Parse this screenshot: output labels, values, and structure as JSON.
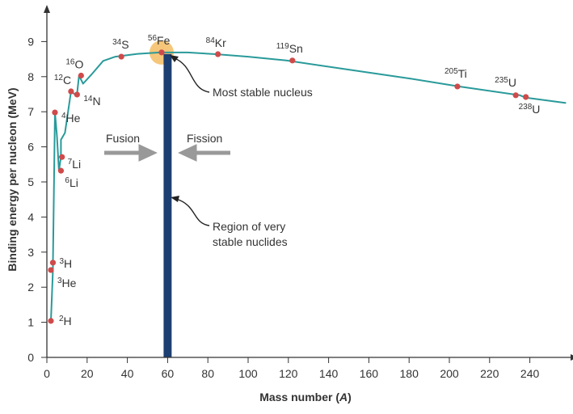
{
  "chart_data": {
    "type": "line",
    "xlabel": "Mass number (",
    "xlabel_italic": "A",
    "xlabel_end": ")",
    "ylabel": "Binding energy per nucleon (MeV)",
    "xlim": [
      0,
      260
    ],
    "ylim": [
      0,
      9.6
    ],
    "xticks": [
      0,
      20,
      40,
      60,
      80,
      100,
      120,
      140,
      160,
      180,
      200,
      220,
      240
    ],
    "yticks": [
      0,
      1,
      2,
      3,
      4,
      5,
      6,
      7,
      8,
      9
    ],
    "grid": false,
    "colors": {
      "curve": "#2a9a9a",
      "point": "#d04a4a",
      "band": "#1d3f72",
      "highlight": "#f6c77a",
      "arrow": "#999999"
    },
    "curve": [
      [
        2,
        1.04
      ],
      [
        3,
        2.5
      ],
      [
        3,
        2.7
      ],
      [
        4,
        6.98
      ],
      [
        5,
        6.3
      ],
      [
        6,
        5.32
      ],
      [
        7,
        5.71
      ],
      [
        7,
        6.2
      ],
      [
        9,
        6.4
      ],
      [
        12,
        7.58
      ],
      [
        14,
        7.49
      ],
      [
        15,
        7.5
      ],
      [
        16,
        8.03
      ],
      [
        18,
        7.8
      ],
      [
        22,
        8.05
      ],
      [
        28,
        8.45
      ],
      [
        34,
        8.57
      ],
      [
        45,
        8.65
      ],
      [
        56,
        8.69
      ],
      [
        70,
        8.69
      ],
      [
        84,
        8.64
      ],
      [
        100,
        8.57
      ],
      [
        119,
        8.46
      ],
      [
        150,
        8.2
      ],
      [
        180,
        7.95
      ],
      [
        205,
        7.72
      ],
      [
        235,
        7.47
      ],
      [
        238,
        7.4
      ],
      [
        258,
        7.25
      ]
    ],
    "points": [
      {
        "mass": "2",
        "symbol": "H",
        "a": 2,
        "be": 1.04
      },
      {
        "mass": "3",
        "symbol": "He",
        "a": 2,
        "be": 2.49
      },
      {
        "mass": "3",
        "symbol": "H",
        "a": 3,
        "be": 2.7
      },
      {
        "mass": "4",
        "symbol": "He",
        "a": 4,
        "be": 6.98
      },
      {
        "mass": "6",
        "symbol": "Li",
        "a": 7,
        "be": 5.32
      },
      {
        "mass": "7",
        "symbol": "Li",
        "a": 7.5,
        "be": 5.71
      },
      {
        "mass": "12",
        "symbol": "C",
        "a": 12,
        "be": 7.58
      },
      {
        "mass": "14",
        "symbol": "N",
        "a": 15,
        "be": 7.49
      },
      {
        "mass": "16",
        "symbol": "O",
        "a": 17,
        "be": 8.03
      },
      {
        "mass": "34",
        "symbol": "S",
        "a": 37,
        "be": 8.57
      },
      {
        "mass": "56",
        "symbol": "Fe",
        "a": 57,
        "be": 8.69
      },
      {
        "mass": "84",
        "symbol": "Kr",
        "a": 85,
        "be": 8.64
      },
      {
        "mass": "119",
        "symbol": "Sn",
        "a": 122,
        "be": 8.46
      },
      {
        "mass": "205",
        "symbol": "Ti",
        "a": 204,
        "be": 7.72
      },
      {
        "mass": "235",
        "symbol": "U",
        "a": 233,
        "be": 7.47
      },
      {
        "mass": "238",
        "symbol": "U",
        "a": 238,
        "be": 7.42
      }
    ],
    "stable_region": [
      58,
      62
    ],
    "annotations": {
      "most_stable": "Most stable nucleus",
      "region_line1": "Region of very",
      "region_line2": "stable nuclides",
      "fusion": "Fusion",
      "fission": "Fission"
    }
  }
}
